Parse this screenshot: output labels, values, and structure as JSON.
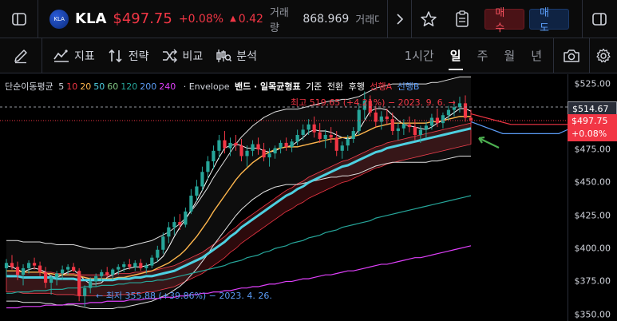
{
  "header": {
    "logo_text": "KLA",
    "symbol": "KLA",
    "price": "$497.75",
    "change_pct": "+0.08%",
    "change_abs": "0.42",
    "volume_label": "거래량",
    "volume_value": "868.969",
    "volume_label2": "거래대",
    "buy_label": "매수",
    "sell_label": "매도"
  },
  "toolbar": {
    "indicators_label": "지표",
    "strategy_label": "전략",
    "compare_label": "비교",
    "analysis_label": "분석",
    "timeframes": [
      "1시간",
      "일",
      "주",
      "월",
      "년"
    ],
    "active_timeframe": "일"
  },
  "legend": {
    "ma_title": "단순이동평균",
    "ma_periods": [
      {
        "label": "5",
        "color": "#d1d4dc"
      },
      {
        "label": "10",
        "color": "#f23645"
      },
      {
        "label": "20",
        "color": "#ffb74d"
      },
      {
        "label": "50",
        "color": "#4dd0e1"
      },
      {
        "label": "60",
        "color": "#81c784"
      },
      {
        "label": "120",
        "color": "#26a69a"
      },
      {
        "label": "200",
        "color": "#5b9cf6"
      },
      {
        "label": "240",
        "color": "#e040fb"
      }
    ],
    "envelope": "· Envelope",
    "band_text": "밴드 · 일목균형표",
    "ichimoku_items": [
      "기준",
      "전환",
      "후행",
      "선행A",
      "선행B"
    ]
  },
  "annotations": {
    "high": "최고 519.65 (+4.21%) − 2023. 9. 6.",
    "low": "최저 355.88 (+39.86%) − 2023. 4. 26."
  },
  "price_axis": {
    "ticks": [
      "$525.00",
      "$500.00",
      "$475.00",
      "$450.00",
      "$425.00",
      "$400.00",
      "$375.00",
      "$350.00"
    ],
    "hover_price": "$514.67",
    "last_price": "$497.75",
    "last_change": "+0.08%"
  },
  "chart_data": {
    "type": "candlestick",
    "price_min": 345,
    "price_max": 532,
    "candles": [
      [
        385,
        392,
        378,
        389
      ],
      [
        389,
        395,
        384,
        386
      ],
      [
        386,
        390,
        376,
        380
      ],
      [
        380,
        388,
        372,
        385
      ],
      [
        385,
        391,
        381,
        389
      ],
      [
        389,
        393,
        384,
        387
      ],
      [
        387,
        390,
        379,
        382
      ],
      [
        382,
        386,
        370,
        374
      ],
      [
        374,
        380,
        365,
        378
      ],
      [
        378,
        383,
        372,
        381
      ],
      [
        381,
        387,
        376,
        384
      ],
      [
        384,
        388,
        380,
        386
      ],
      [
        386,
        389,
        382,
        383
      ],
      [
        383,
        385,
        360,
        364
      ],
      [
        364,
        372,
        356,
        370
      ],
      [
        370,
        378,
        366,
        375
      ],
      [
        375,
        381,
        371,
        379
      ],
      [
        379,
        384,
        375,
        382
      ],
      [
        382,
        386,
        378,
        380
      ],
      [
        380,
        385,
        376,
        384
      ],
      [
        384,
        388,
        380,
        386
      ],
      [
        386,
        390,
        382,
        388
      ],
      [
        388,
        392,
        384,
        386
      ],
      [
        386,
        391,
        383,
        389
      ],
      [
        389,
        392,
        383,
        385
      ],
      [
        385,
        389,
        381,
        387
      ],
      [
        387,
        395,
        385,
        393
      ],
      [
        393,
        402,
        390,
        399
      ],
      [
        399,
        412,
        396,
        409
      ],
      [
        409,
        420,
        404,
        416
      ],
      [
        416,
        424,
        410,
        420
      ],
      [
        420,
        426,
        414,
        418
      ],
      [
        418,
        431,
        416,
        428
      ],
      [
        428,
        445,
        426,
        440
      ],
      [
        440,
        452,
        436,
        447
      ],
      [
        447,
        462,
        444,
        458
      ],
      [
        458,
        470,
        452,
        466
      ],
      [
        466,
        478,
        460,
        474
      ],
      [
        474,
        486,
        468,
        482
      ],
      [
        482,
        489,
        472,
        476
      ],
      [
        476,
        484,
        470,
        480
      ],
      [
        480,
        486,
        474,
        478
      ],
      [
        478,
        483,
        466,
        470
      ],
      [
        470,
        478,
        462,
        474
      ],
      [
        474,
        482,
        470,
        479
      ],
      [
        479,
        484,
        471,
        475
      ],
      [
        475,
        480,
        466,
        469
      ],
      [
        469,
        476,
        462,
        472
      ],
      [
        472,
        478,
        468,
        476
      ],
      [
        476,
        482,
        472,
        480
      ],
      [
        480,
        484,
        474,
        477
      ],
      [
        477,
        483,
        473,
        481
      ],
      [
        481,
        490,
        478,
        486
      ],
      [
        486,
        494,
        482,
        490
      ],
      [
        490,
        498,
        486,
        494
      ],
      [
        494,
        500,
        484,
        488
      ],
      [
        488,
        495,
        480,
        483
      ],
      [
        483,
        490,
        476,
        486
      ],
      [
        486,
        492,
        480,
        484
      ],
      [
        484,
        489,
        470,
        474
      ],
      [
        474,
        481,
        468,
        478
      ],
      [
        478,
        486,
        474,
        483
      ],
      [
        483,
        492,
        480,
        489
      ],
      [
        489,
        510,
        486,
        505
      ],
      [
        505,
        519,
        498,
        512
      ],
      [
        512,
        516,
        500,
        503
      ],
      [
        503,
        508,
        492,
        496
      ],
      [
        496,
        504,
        490,
        500
      ],
      [
        500,
        506,
        494,
        498
      ],
      [
        498,
        503,
        486,
        489
      ],
      [
        489,
        495,
        482,
        491
      ],
      [
        491,
        498,
        486,
        494
      ],
      [
        494,
        500,
        488,
        492
      ],
      [
        492,
        498,
        482,
        486
      ],
      [
        486,
        493,
        480,
        490
      ],
      [
        490,
        496,
        484,
        493
      ],
      [
        493,
        502,
        490,
        499
      ],
      [
        499,
        506,
        492,
        495
      ],
      [
        495,
        503,
        491,
        501
      ],
      [
        501,
        508,
        497,
        505
      ],
      [
        505,
        512,
        500,
        507
      ],
      [
        507,
        515,
        503,
        510
      ],
      [
        510,
        516,
        496,
        499
      ],
      [
        499,
        505,
        494,
        497
      ]
    ],
    "series": [
      {
        "name": "5",
        "values": [
          387,
          386,
          384,
          382,
          384,
          385,
          384,
          382,
          379,
          378,
          380,
          382,
          384,
          380,
          376,
          373,
          373,
          374,
          378,
          380,
          382,
          384,
          385,
          386,
          386,
          387,
          388,
          390,
          394,
          401,
          409,
          416,
          422,
          429,
          436,
          444,
          453,
          461,
          469,
          476,
          478,
          479,
          478,
          476,
          476,
          476,
          474,
          473,
          474,
          476,
          477,
          478,
          481,
          484,
          488,
          490,
          489,
          489,
          488,
          486,
          484,
          483,
          484,
          490,
          497,
          504,
          506,
          506,
          505,
          501,
          497,
          494,
          493,
          492,
          491,
          490,
          492,
          495,
          497,
          500,
          503,
          506,
          506,
          504
        ]
      },
      {
        "name": "20",
        "values": [
          383,
          383,
          383,
          382,
          382,
          382,
          382,
          381,
          381,
          380,
          380,
          380,
          380,
          379,
          378,
          377,
          377,
          377,
          377,
          377,
          378,
          378,
          379,
          380,
          381,
          382,
          383,
          385,
          387,
          389,
          392,
          395,
          399,
          404,
          409,
          415,
          421,
          428,
          434,
          440,
          446,
          452,
          457,
          461,
          465,
          468,
          471,
          473,
          475,
          476,
          477,
          477,
          477,
          478,
          479,
          480,
          481,
          482,
          483,
          483,
          484,
          484,
          485,
          486,
          488,
          490,
          492,
          493,
          494,
          495,
          495,
          495,
          495,
          495,
          495,
          495,
          496,
          496,
          497,
          498,
          499,
          500,
          500,
          500
        ]
      },
      {
        "name": "50",
        "values": [
          379,
          379,
          379,
          378,
          378,
          378,
          378,
          378,
          378,
          377,
          377,
          377,
          377,
          376,
          376,
          376,
          376,
          376,
          376,
          376,
          377,
          377,
          377,
          378,
          378,
          379,
          379,
          380,
          381,
          382,
          383,
          385,
          387,
          389,
          391,
          393,
          396,
          399,
          402,
          405,
          409,
          412,
          416,
          419,
          422,
          425,
          428,
          431,
          434,
          437,
          440,
          442,
          445,
          447,
          450,
          452,
          454,
          456,
          458,
          460,
          462,
          463,
          465,
          467,
          469,
          471,
          473,
          474,
          476,
          477,
          478,
          479,
          480,
          481,
          482,
          483,
          484,
          485,
          486,
          487,
          488,
          489,
          490,
          491
        ]
      },
      {
        "name": "120",
        "values": [
          366,
          366,
          367,
          367,
          367,
          368,
          368,
          368,
          369,
          369,
          369,
          370,
          370,
          370,
          371,
          371,
          371,
          372,
          372,
          372,
          373,
          373,
          374,
          374,
          374,
          375,
          375,
          376,
          376,
          377,
          378,
          379,
          380,
          381,
          382,
          383,
          384,
          385,
          386,
          387,
          389,
          390,
          391,
          393,
          394,
          395,
          397,
          398,
          400,
          401,
          402,
          404,
          405,
          406,
          408,
          409,
          410,
          412,
          413,
          414,
          416,
          417,
          418,
          419,
          420,
          421,
          423,
          424,
          425,
          426,
          427,
          428,
          429,
          430,
          431,
          432,
          433,
          434,
          435,
          436,
          437,
          438,
          439,
          440
        ]
      },
      {
        "name": "240",
        "values": [
          355,
          355,
          355,
          356,
          356,
          356,
          356,
          357,
          357,
          357,
          357,
          358,
          358,
          358,
          358,
          359,
          359,
          359,
          360,
          360,
          360,
          360,
          361,
          361,
          361,
          362,
          362,
          362,
          363,
          363,
          363,
          364,
          364,
          365,
          365,
          366,
          366,
          367,
          367,
          368,
          368,
          369,
          370,
          370,
          371,
          371,
          372,
          373,
          373,
          374,
          375,
          375,
          376,
          377,
          377,
          378,
          379,
          380,
          380,
          381,
          382,
          383,
          383,
          384,
          385,
          386,
          387,
          388,
          388,
          389,
          390,
          391,
          392,
          393,
          393,
          394,
          395,
          396,
          397,
          398,
          399,
          400,
          401,
          402
        ]
      }
    ]
  },
  "colors": {
    "up": "#26a69a",
    "down": "#f23645",
    "accent_red": "#f23645",
    "accent_blue": "#5b9cf6"
  }
}
